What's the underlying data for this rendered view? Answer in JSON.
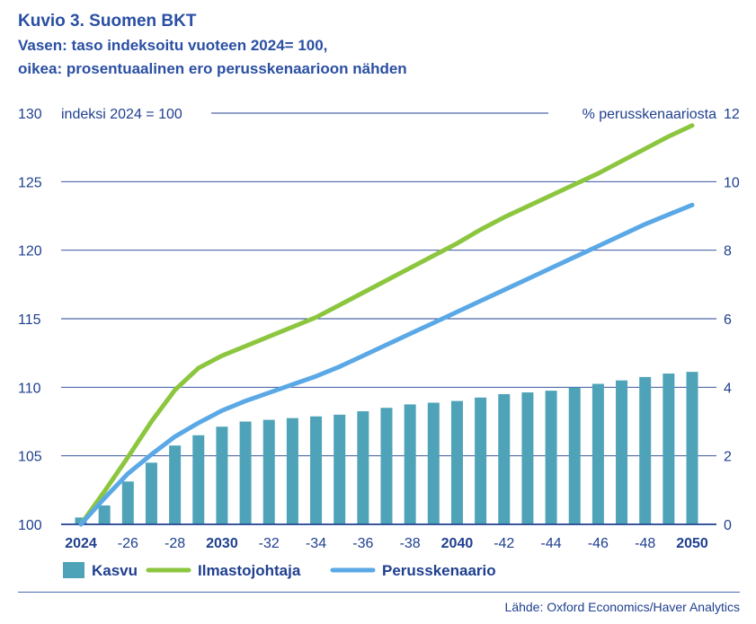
{
  "header": {
    "title": "Kuvio 3. Suomen BKT",
    "subtitle1": "Vasen: taso indeksoitu vuoteen 2024= 100,",
    "subtitle2": "oikea: prosentuaalinen ero perusskenaarioon nähden"
  },
  "source": "Lähde: Oxford Economics/Haver Analytics",
  "colors": {
    "bar": "#4fa3b8",
    "green": "#8cc63f",
    "blue": "#5aa8e6",
    "text": "#1f3f8f",
    "grid": "#1f3f8f"
  },
  "chart_data": {
    "type": "bar+line",
    "title": "Suomen BKT",
    "left_axis": {
      "label": "indeksi 2024 = 100",
      "min": 100,
      "max": 130,
      "ticks": [
        100,
        105,
        110,
        115,
        120,
        125,
        130
      ]
    },
    "right_axis": {
      "label": "% perusskenaariosta",
      "min": 0,
      "max": 12,
      "ticks": [
        0,
        2,
        4,
        6,
        8,
        10,
        12
      ]
    },
    "x": [
      2024,
      2025,
      2026,
      2027,
      2028,
      2029,
      2030,
      2031,
      2032,
      2033,
      2034,
      2035,
      2036,
      2037,
      2038,
      2039,
      2040,
      2041,
      2042,
      2043,
      2044,
      2045,
      2046,
      2047,
      2048,
      2049,
      2050
    ],
    "x_tick_labels": [
      {
        "x": 2024,
        "label": "2024",
        "bold": true
      },
      {
        "x": 2026,
        "label": "-26",
        "bold": false
      },
      {
        "x": 2028,
        "label": "-28",
        "bold": false
      },
      {
        "x": 2030,
        "label": "2030",
        "bold": true
      },
      {
        "x": 2032,
        "label": "-32",
        "bold": false
      },
      {
        "x": 2034,
        "label": "-34",
        "bold": false
      },
      {
        "x": 2036,
        "label": "-36",
        "bold": false
      },
      {
        "x": 2038,
        "label": "-38",
        "bold": false
      },
      {
        "x": 2040,
        "label": "2040",
        "bold": true
      },
      {
        "x": 2042,
        "label": "-42",
        "bold": false
      },
      {
        "x": 2044,
        "label": "-44",
        "bold": false
      },
      {
        "x": 2046,
        "label": "-46",
        "bold": false
      },
      {
        "x": 2048,
        "label": "-48",
        "bold": false
      },
      {
        "x": 2050,
        "label": "2050",
        "bold": true
      }
    ],
    "series": [
      {
        "name": "Kasvu",
        "type": "bar",
        "axis": "right",
        "values": [
          0.2,
          0.55,
          1.25,
          1.8,
          2.3,
          2.6,
          2.85,
          3.0,
          3.05,
          3.1,
          3.15,
          3.2,
          3.3,
          3.4,
          3.5,
          3.55,
          3.6,
          3.7,
          3.8,
          3.85,
          3.9,
          4.0,
          4.1,
          4.2,
          4.3,
          4.4,
          4.45
        ]
      },
      {
        "name": "Ilmastojohtaja",
        "type": "line",
        "axis": "left",
        "values": [
          100.0,
          102.4,
          104.9,
          107.5,
          109.8,
          111.4,
          112.3,
          113.0,
          113.7,
          114.4,
          115.1,
          116.0,
          116.9,
          117.8,
          118.7,
          119.6,
          120.5,
          121.5,
          122.4,
          123.2,
          124.0,
          124.8,
          125.6,
          126.5,
          127.4,
          128.3,
          129.1
        ]
      },
      {
        "name": "Perusskenaario",
        "type": "line",
        "axis": "left",
        "values": [
          100.0,
          101.9,
          103.7,
          105.1,
          106.4,
          107.4,
          108.3,
          109.0,
          109.6,
          110.2,
          110.8,
          111.5,
          112.3,
          113.1,
          113.9,
          114.7,
          115.5,
          116.3,
          117.1,
          117.9,
          118.7,
          119.5,
          120.3,
          121.1,
          121.9,
          122.6,
          123.3
        ]
      }
    ],
    "legend": {
      "position": "bottom-left",
      "entries": [
        "Kasvu",
        "Ilmastojohtaja",
        "Perusskenaario"
      ]
    },
    "grid": true
  }
}
